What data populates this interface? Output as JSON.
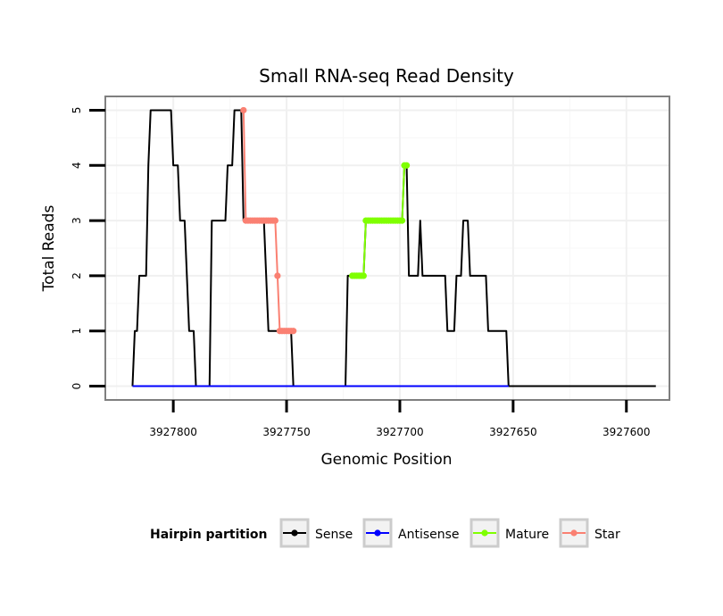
{
  "chart_data": {
    "type": "line",
    "title": "Small RNA-seq Read Density",
    "xlabel": "Genomic Position",
    "ylabel": "Total Reads",
    "x_reversed": true,
    "xlim": [
      3927830,
      3927581
    ],
    "ylim": [
      -0.25,
      5.25
    ],
    "x_ticks": [
      3927800,
      3927750,
      3927700,
      3927650,
      3927600
    ],
    "x_tick_labels": [
      "3927800",
      "3927750",
      "3927700",
      "3927650",
      "3927600"
    ],
    "y_ticks": [
      0,
      1,
      2,
      3,
      4,
      5
    ],
    "y_tick_labels": [
      "0",
      "1",
      "2",
      "3",
      "4",
      "5"
    ],
    "grid": true,
    "legend": {
      "title": "Hairpin partition",
      "placement": "bottom",
      "entries": [
        {
          "label": "Sense",
          "color": "#000000"
        },
        {
          "label": "Antisense",
          "color": "#0000ff"
        },
        {
          "label": "Mature",
          "color": "#7fff00"
        },
        {
          "label": "Star",
          "color": "#fa8072"
        }
      ]
    },
    "series": [
      {
        "name": "Sense",
        "color": "#000000",
        "points": [
          [
            3927818,
            0
          ],
          [
            3927817,
            1
          ],
          [
            3927816,
            1
          ],
          [
            3927815,
            2
          ],
          [
            3927814,
            2
          ],
          [
            3927813,
            2
          ],
          [
            3927812,
            2
          ],
          [
            3927811,
            4
          ],
          [
            3927810,
            5
          ],
          [
            3927809,
            5
          ],
          [
            3927806,
            5
          ],
          [
            3927805,
            5
          ],
          [
            3927802,
            5
          ],
          [
            3927801,
            5
          ],
          [
            3927800,
            4
          ],
          [
            3927799,
            4
          ],
          [
            3927798,
            4
          ],
          [
            3927797,
            3
          ],
          [
            3927796,
            3
          ],
          [
            3927795,
            3
          ],
          [
            3927794,
            2
          ],
          [
            3927793,
            1
          ],
          [
            3927792,
            1
          ],
          [
            3927791,
            1
          ],
          [
            3927790,
            0
          ],
          [
            3927789,
            0
          ],
          [
            3927786,
            0
          ],
          [
            3927785,
            0
          ],
          [
            3927784,
            0
          ],
          [
            3927783,
            3
          ],
          [
            3927782,
            3
          ],
          [
            3927779,
            3
          ],
          [
            3927778,
            3
          ],
          [
            3927777,
            3
          ],
          [
            3927776,
            4
          ],
          [
            3927775,
            4
          ],
          [
            3927774,
            4
          ],
          [
            3927773,
            5
          ],
          [
            3927772,
            5
          ],
          [
            3927771,
            5
          ],
          [
            3927770,
            5
          ],
          [
            3927769,
            3
          ],
          [
            3927761,
            3
          ],
          [
            3927760,
            3
          ],
          [
            3927759,
            2
          ],
          [
            3927758,
            1
          ],
          [
            3927757,
            1
          ],
          [
            3927750,
            1
          ],
          [
            3927749,
            1
          ],
          [
            3927748,
            1
          ],
          [
            3927747,
            0
          ],
          [
            3927746,
            0
          ],
          [
            3927724,
            0
          ],
          [
            3927723,
            2
          ],
          [
            3927722,
            2
          ],
          [
            3927716,
            2
          ],
          [
            3927715,
            3
          ],
          [
            3927714,
            3
          ],
          [
            3927700,
            3
          ],
          [
            3927699,
            3
          ],
          [
            3927698,
            4
          ],
          [
            3927697,
            4
          ],
          [
            3927696,
            2
          ],
          [
            3927695,
            2
          ],
          [
            3927693,
            2
          ],
          [
            3927692,
            2
          ],
          [
            3927691,
            3
          ],
          [
            3927690,
            2
          ],
          [
            3927689,
            2
          ],
          [
            3927681,
            2
          ],
          [
            3927680,
            2
          ],
          [
            3927679,
            1
          ],
          [
            3927678,
            1
          ],
          [
            3927676,
            1
          ],
          [
            3927675,
            2
          ],
          [
            3927674,
            2
          ],
          [
            3927673,
            2
          ],
          [
            3927672,
            3
          ],
          [
            3927671,
            3
          ],
          [
            3927670,
            3
          ],
          [
            3927669,
            2
          ],
          [
            3927668,
            2
          ],
          [
            3927663,
            2
          ],
          [
            3927662,
            2
          ],
          [
            3927661,
            1
          ],
          [
            3927660,
            1
          ],
          [
            3927654,
            1
          ],
          [
            3927653,
            1
          ],
          [
            3927652,
            0
          ],
          [
            3927651,
            0
          ],
          [
            3927601,
            0
          ],
          [
            3927600,
            0
          ],
          [
            3927587,
            0
          ]
        ]
      },
      {
        "name": "Antisense",
        "color": "#0000ff",
        "points": [
          [
            3927818,
            0
          ],
          [
            3927652,
            0
          ]
        ]
      },
      {
        "name": "Star",
        "color": "#fa8072",
        "points": [
          [
            3927769,
            5
          ],
          [
            3927768,
            3
          ],
          [
            3927767,
            3
          ],
          [
            3927766,
            3
          ],
          [
            3927765,
            3
          ],
          [
            3927764,
            3
          ],
          [
            3927763,
            3
          ],
          [
            3927762,
            3
          ],
          [
            3927761,
            3
          ],
          [
            3927760,
            3
          ],
          [
            3927759,
            3
          ],
          [
            3927758,
            3
          ],
          [
            3927757,
            3
          ],
          [
            3927756,
            3
          ],
          [
            3927755,
            3
          ],
          [
            3927754,
            2
          ],
          [
            3927753,
            1
          ],
          [
            3927752,
            1
          ],
          [
            3927751,
            1
          ],
          [
            3927750,
            1
          ],
          [
            3927749,
            1
          ],
          [
            3927748,
            1
          ],
          [
            3927747,
            1
          ]
        ]
      },
      {
        "name": "Mature",
        "color": "#7fff00",
        "points": [
          [
            3927721,
            2
          ],
          [
            3927720,
            2
          ],
          [
            3927719,
            2
          ],
          [
            3927718,
            2
          ],
          [
            3927717,
            2
          ],
          [
            3927716,
            2
          ],
          [
            3927715,
            3
          ],
          [
            3927714,
            3
          ],
          [
            3927713,
            3
          ],
          [
            3927712,
            3
          ],
          [
            3927711,
            3
          ],
          [
            3927710,
            3
          ],
          [
            3927709,
            3
          ],
          [
            3927708,
            3
          ],
          [
            3927707,
            3
          ],
          [
            3927706,
            3
          ],
          [
            3927705,
            3
          ],
          [
            3927704,
            3
          ],
          [
            3927703,
            3
          ],
          [
            3927702,
            3
          ],
          [
            3927701,
            3
          ],
          [
            3927700,
            3
          ],
          [
            3927699,
            3
          ],
          [
            3927698,
            4
          ],
          [
            3927697,
            4
          ]
        ]
      }
    ]
  }
}
